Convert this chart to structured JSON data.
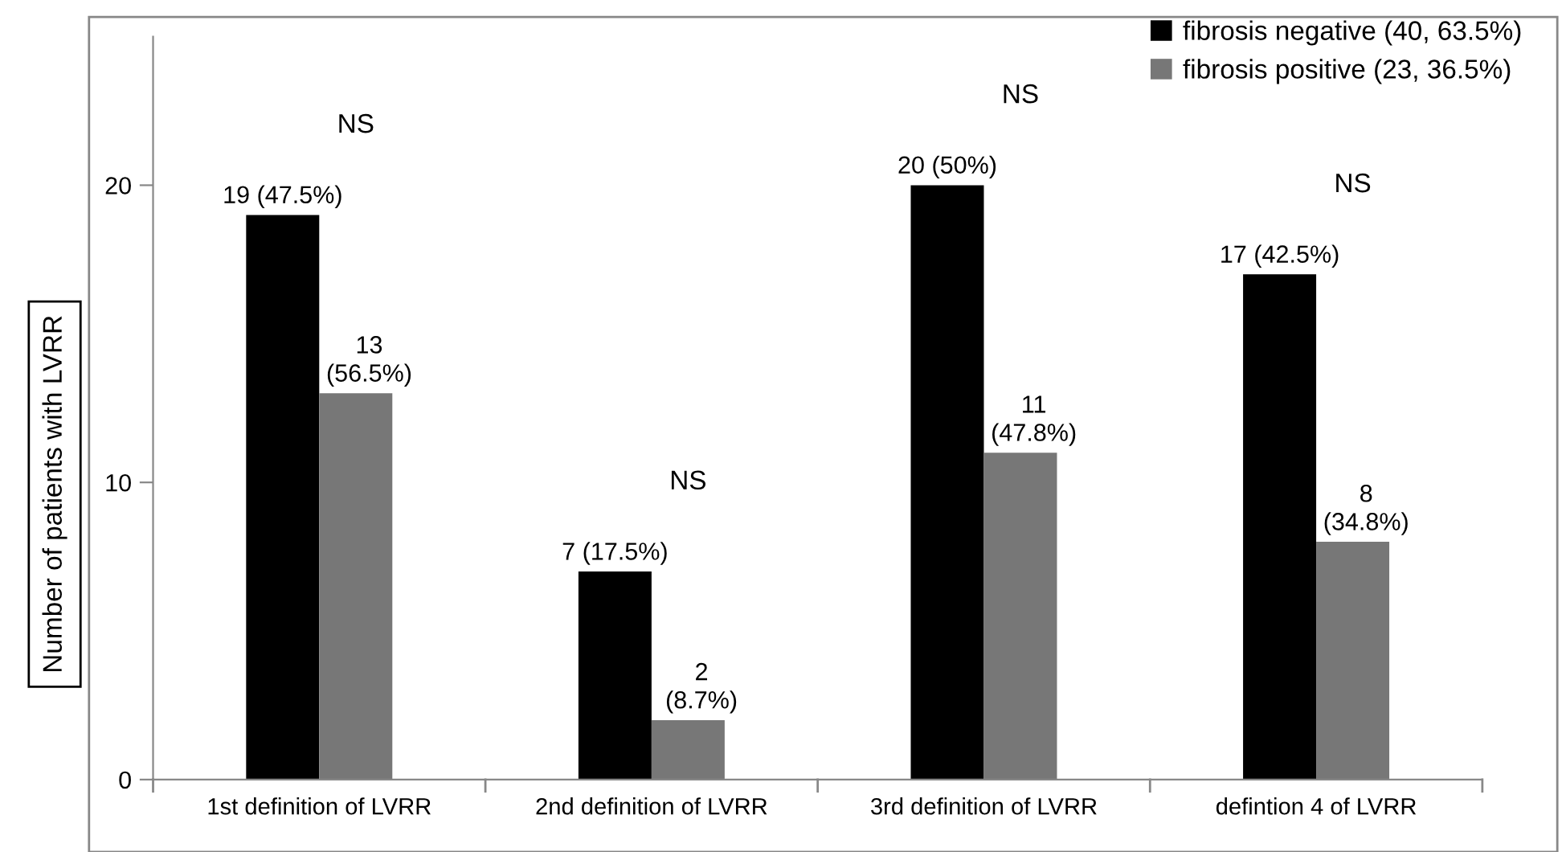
{
  "chart_data": {
    "type": "bar",
    "categories": [
      "1st definition of LVRR",
      "2nd definition of LVRR",
      "3rd definition of LVRR",
      "defintion 4 of LVRR"
    ],
    "ylabel": "Number of patients with LVRR",
    "series": [
      {
        "name": "fibrosis negative (40, 63.5%)",
        "color": "#000000",
        "values": [
          19,
          7,
          20,
          17
        ],
        "value_labels": [
          "19 (47.5%)",
          "7 (17.5%)",
          "20 (50%)",
          "17 (42.5%)"
        ]
      },
      {
        "name": "fibrosis positive (23, 36.5%)",
        "color": "#777777",
        "values": [
          13,
          2,
          11,
          8
        ],
        "value_labels": [
          "13\n(56.5%)",
          "2\n(8.7%)",
          "11\n(47.8%)",
          "8\n(34.8%)"
        ]
      }
    ],
    "annotations": [
      "NS",
      "NS",
      "NS",
      "NS"
    ],
    "ylim": [
      0,
      25
    ],
    "yticks": [
      0,
      10,
      20
    ],
    "grid": false,
    "legend": "top right"
  }
}
